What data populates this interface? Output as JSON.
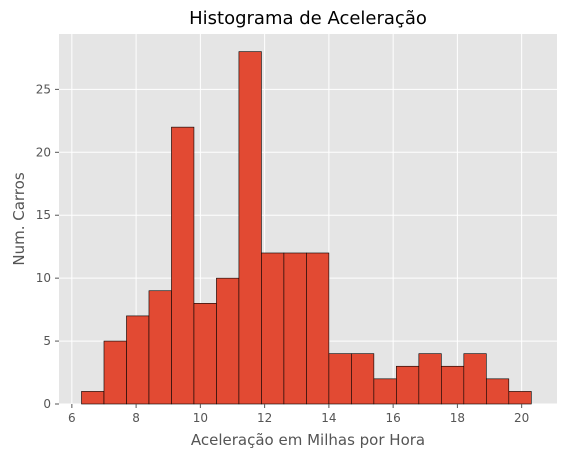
{
  "chart_data": {
    "type": "bar",
    "title": "Histograma de Aceleração",
    "xlabel": "Aceleração em Milhas por Hora",
    "ylabel": "Num. Carros",
    "xlim": [
      5.6,
      21.1
    ],
    "ylim": [
      0,
      29.4
    ],
    "xticks": [
      6,
      8,
      10,
      12,
      14,
      16,
      18,
      20
    ],
    "yticks": [
      0,
      5,
      10,
      15,
      20,
      25
    ],
    "bin_edges": [
      6.3,
      7.0,
      7.7,
      8.4,
      9.1,
      9.8,
      10.5,
      11.2,
      11.9,
      12.6,
      13.3,
      14.0,
      14.7,
      15.4,
      16.1,
      16.8,
      17.5,
      18.2,
      18.9,
      19.6,
      20.3
    ],
    "values": [
      1,
      5,
      7,
      9,
      22,
      8,
      10,
      28,
      12,
      12,
      12,
      4,
      4,
      2,
      3,
      4,
      3,
      4,
      2,
      1
    ],
    "grid": true,
    "colors": {
      "bar": "#E24A33",
      "background": "#E5E5E5",
      "grid": "#FFFFFF"
    }
  }
}
